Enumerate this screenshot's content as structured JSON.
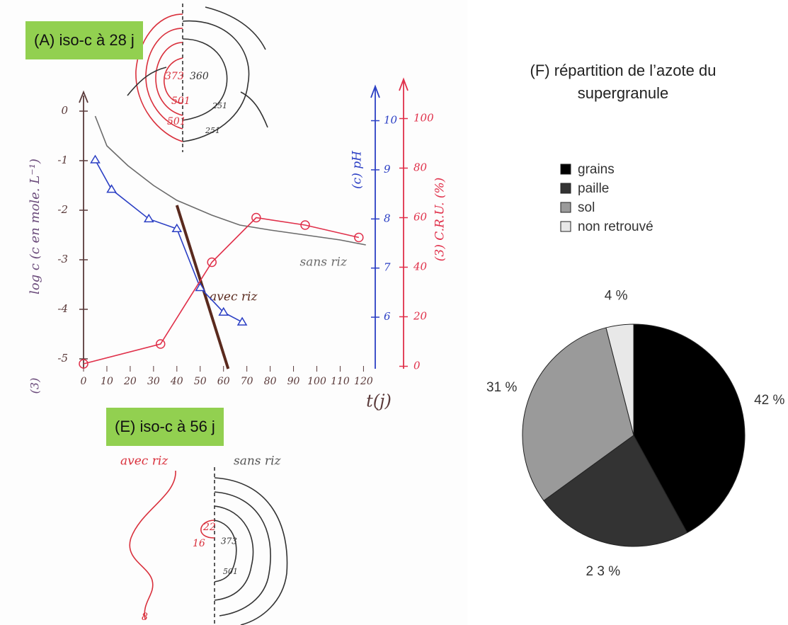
{
  "panel_a": {
    "label": "(A) iso-c à 28 j",
    "contours": [
      "373",
      "360",
      "501",
      "251",
      "501",
      "251"
    ]
  },
  "panel_e": {
    "label": "(E) iso-c à 56 j",
    "left": "avec riz",
    "right": "sans riz",
    "contours": [
      "22",
      "16",
      "373",
      "501",
      "8"
    ]
  },
  "chart_data": [
    {
      "type": "line",
      "y_label": "log c  (c en mole. L⁻¹)",
      "y2_label": "(c) pH",
      "y3_label": "(3) C.R.U. (%)",
      "x_label": "t(j)",
      "panel_mark": "(3)",
      "xlim": [
        0,
        122
      ],
      "xticks": [
        0,
        10,
        20,
        30,
        40,
        50,
        60,
        70,
        80,
        90,
        100,
        110,
        120
      ],
      "ylim": [
        -5.2,
        0.6
      ],
      "yticks": [
        0,
        -1,
        -2,
        -3,
        -4,
        -5
      ],
      "y2lim": [
        4.95,
        10.8
      ],
      "y2ticks": [
        6,
        7,
        8,
        9,
        10
      ],
      "y3lim": [
        -1,
        115
      ],
      "y3ticks": [
        0,
        20,
        40,
        60,
        80,
        100
      ],
      "series": [
        {
          "name": "sans riz",
          "color": "#6b6b6b",
          "x": [
            5,
            10,
            19,
            30,
            40,
            55,
            67,
            80,
            95,
            110,
            121
          ],
          "values": [
            -0.1,
            -0.7,
            -1.1,
            -1.5,
            -1.8,
            -2.1,
            -2.3,
            -2.4,
            -2.5,
            -2.6,
            -2.7
          ]
        },
        {
          "name": "avec riz",
          "color": "#5a2a1e",
          "x": [
            40,
            62
          ],
          "values": [
            -1.9,
            -5.2
          ]
        },
        {
          "color": "#2b3fc4",
          "axis": "y2",
          "marker": "triangle",
          "x": [
            5,
            12,
            28,
            40,
            50,
            60,
            68
          ],
          "values": [
            9.2,
            8.6,
            8.0,
            7.8,
            6.6,
            6.1,
            5.9
          ]
        },
        {
          "color": "#e0304a",
          "axis": "y3",
          "marker": "circle",
          "x": [
            0,
            33,
            55,
            74,
            95,
            118
          ],
          "values": [
            1,
            9,
            42,
            60,
            57,
            52
          ]
        }
      ]
    },
    {
      "type": "pie",
      "title": "(F)   répartition de l’azote du supergranule",
      "categories": [
        "grains",
        "paille",
        "sol",
        "non retrouvé"
      ],
      "values": [
        42,
        23,
        31,
        4
      ],
      "value_labels": [
        "42 %",
        "2 3 %",
        "31 %",
        "4 %"
      ],
      "colors": [
        "#000000",
        "#333333",
        "#9a9a9a",
        "#e8e8e8"
      ],
      "legend": "top"
    }
  ]
}
